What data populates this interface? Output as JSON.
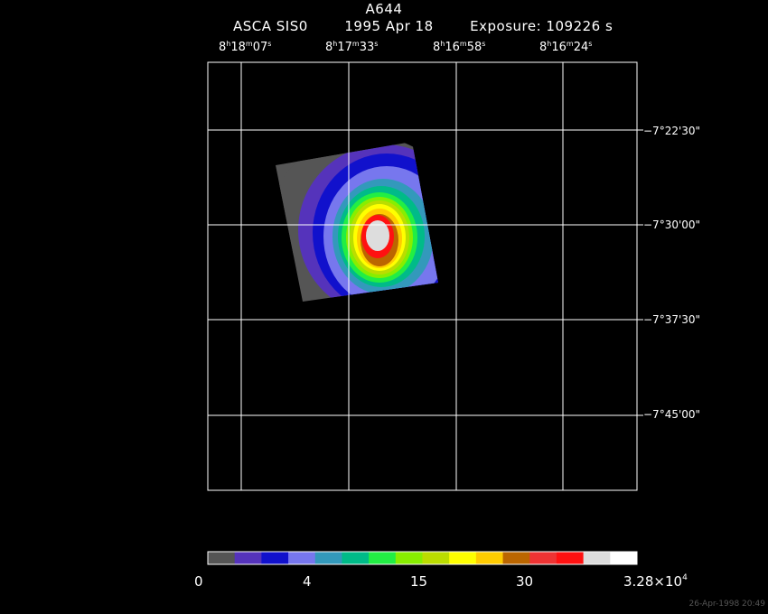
{
  "title": "A644",
  "subtitle": {
    "instrument": "ASCA SIS0",
    "date": "1995 Apr 18",
    "exposure": "Exposure: 109226 s"
  },
  "ra_labels": [
    {
      "h": "8",
      "m": "18",
      "s": "07"
    },
    {
      "h": "8",
      "m": "17",
      "s": "33"
    },
    {
      "h": "8",
      "m": "16",
      "s": "58"
    },
    {
      "h": "8",
      "m": "16",
      "s": "24"
    }
  ],
  "dec_labels": [
    "−7°22'30\"",
    "−7°30'00\"",
    "−7°37'30\"",
    "−7°45'00\""
  ],
  "colorbar": {
    "colors": [
      "#555555",
      "#5533bb",
      "#1111cc",
      "#7777ee",
      "#3399bb",
      "#00bb88",
      "#22ee44",
      "#88ee00",
      "#bbdd00",
      "#ffff00",
      "#ffcc00",
      "#bb6600",
      "#ee3333",
      "#ff1111",
      "#dddddd",
      "#ffffff"
    ],
    "labels": {
      "l0": "0",
      "l1": "4",
      "l2": "15",
      "l3": "30",
      "l4_base": "3.28×10",
      "l4_exp": "4"
    }
  },
  "timestamp": "26-Apr-1998 20:49"
}
